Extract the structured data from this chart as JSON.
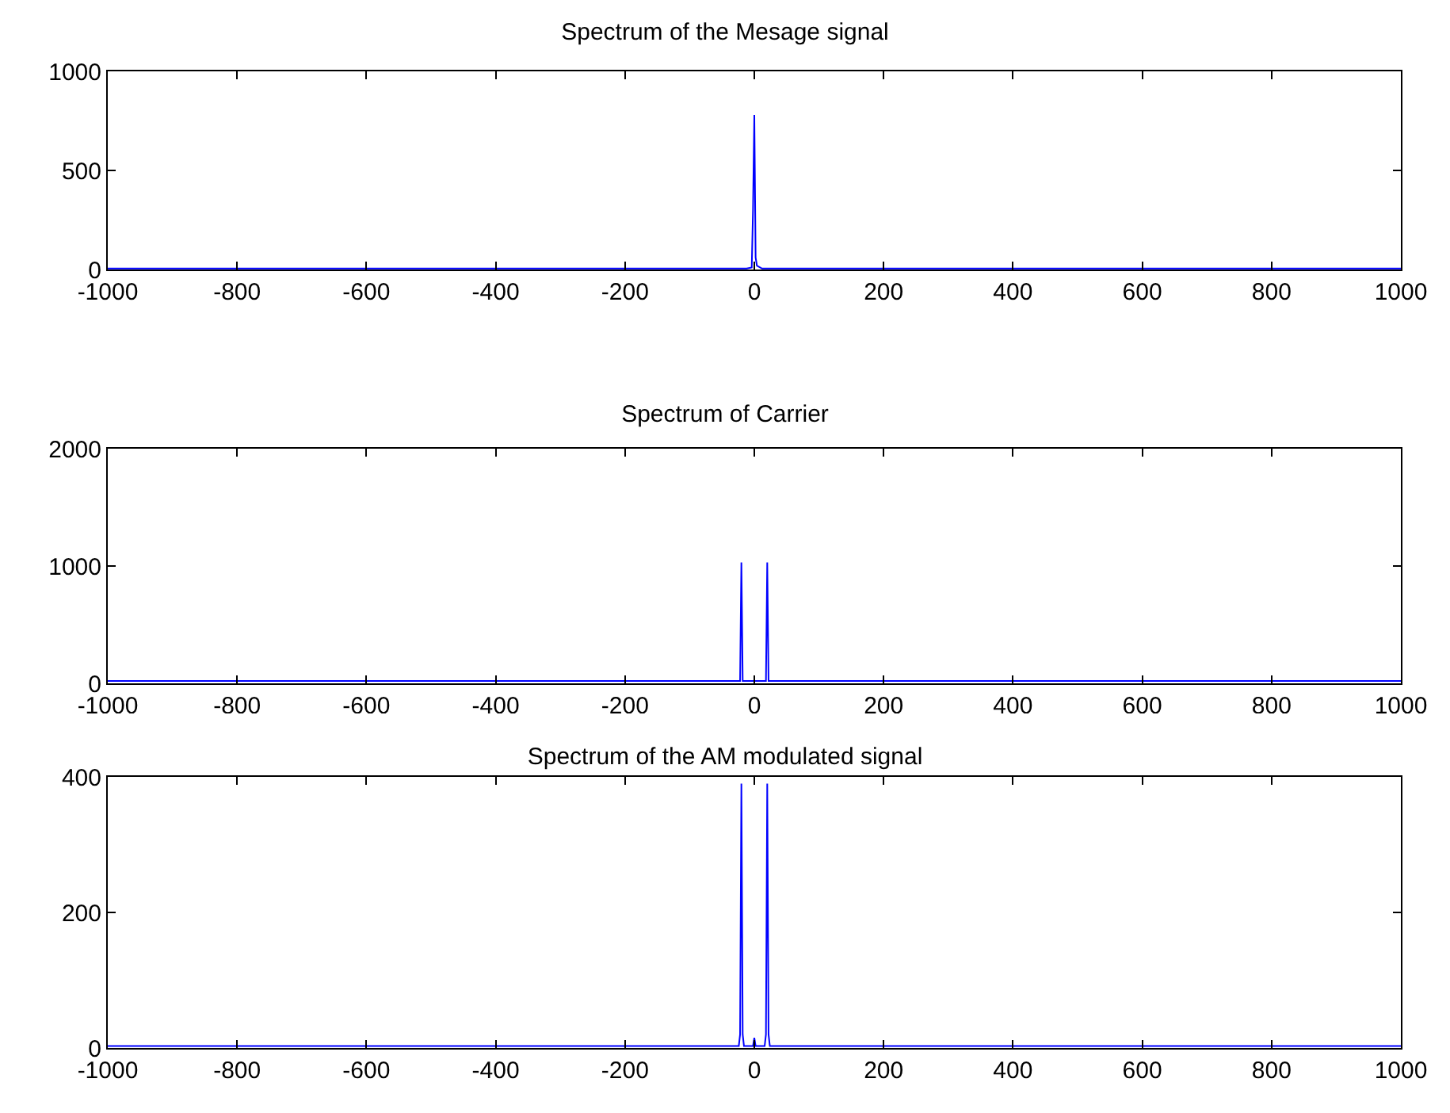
{
  "chart_data": [
    {
      "type": "line",
      "title": "Spectrum of the Mesage signal",
      "x": [
        -1000,
        -12,
        -4,
        -2,
        0,
        2,
        4,
        12,
        1000
      ],
      "series": [
        {
          "color": "#0000ff",
          "values": [
            5,
            5,
            10,
            300,
            780,
            60,
            20,
            5,
            5
          ]
        }
      ],
      "xlim": [
        -1000,
        1000
      ],
      "xticks": [
        -1000,
        -800,
        -600,
        -400,
        -200,
        0,
        200,
        400,
        600,
        800,
        1000
      ],
      "ylim": [
        0,
        1000
      ],
      "yticks": [
        0,
        500,
        1000
      ],
      "grid": false,
      "marker": "none",
      "line_style": "solid"
    },
    {
      "type": "line",
      "title": "Spectrum of Carrier",
      "x": [
        -1000,
        -22,
        -20,
        -18,
        18,
        20,
        22,
        1000
      ],
      "series": [
        {
          "color": "#0000ff",
          "values": [
            20,
            20,
            1030,
            20,
            20,
            1030,
            20,
            20
          ]
        }
      ],
      "xlim": [
        -1000,
        1000
      ],
      "xticks": [
        -1000,
        -800,
        -600,
        -400,
        -200,
        0,
        200,
        400,
        600,
        800,
        1000
      ],
      "ylim": [
        0,
        2000
      ],
      "yticks": [
        0,
        1000,
        2000
      ],
      "grid": false,
      "marker": "none",
      "line_style": "solid"
    },
    {
      "type": "line",
      "title": "Spectrum of the AM modulated signal",
      "x": [
        -1000,
        -24,
        -22,
        -20,
        -18,
        -16,
        -2,
        0,
        2,
        16,
        18,
        20,
        22,
        24,
        1000
      ],
      "series": [
        {
          "color": "#0000ff",
          "values": [
            3,
            3,
            20,
            390,
            20,
            3,
            3,
            15,
            3,
            3,
            20,
            390,
            20,
            3,
            3
          ]
        }
      ],
      "xlim": [
        -1000,
        1000
      ],
      "xticks": [
        -1000,
        -800,
        -600,
        -400,
        -200,
        0,
        200,
        400,
        600,
        800,
        1000
      ],
      "ylim": [
        0,
        400
      ],
      "yticks": [
        0,
        200,
        400
      ],
      "grid": false,
      "marker": "none",
      "line_style": "solid"
    }
  ]
}
